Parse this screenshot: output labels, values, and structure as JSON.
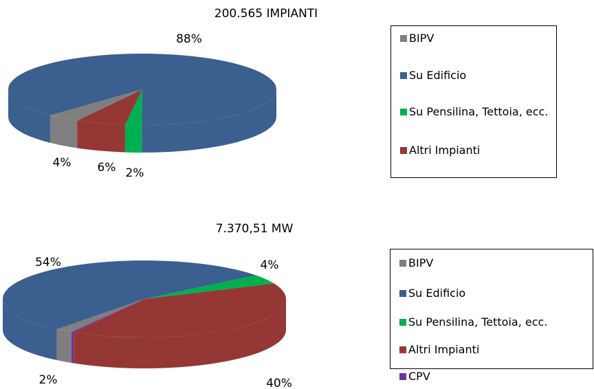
{
  "chart_data": [
    {
      "type": "pie3d",
      "title": "200.565 IMPIANTI",
      "categories": [
        "BIPV",
        "Su Edificio",
        "Su Pensilina, Tettoia, ecc.",
        "Altri Impianti"
      ],
      "values": [
        4,
        88,
        2,
        6
      ],
      "value_labels": [
        "4%",
        "88%",
        "2%",
        "6%"
      ],
      "colors": [
        "#7f7f7f",
        "#3b5f8f",
        "#00b050",
        "#953735"
      ],
      "legend": "right"
    },
    {
      "type": "pie3d",
      "title": "7.370,51 MW",
      "categories": [
        "BIPV",
        "Su Edificio",
        "Su Pensilina, Tettoia, ecc.",
        "Altri Impianti",
        "CPV"
      ],
      "values": [
        2,
        54,
        4,
        40,
        0.3
      ],
      "value_labels": [
        "2%",
        "54%",
        "4%",
        "40%",
        null
      ],
      "colors": [
        "#7f7f7f",
        "#3b5f8f",
        "#00b050",
        "#953735",
        "#7030a0"
      ],
      "legend": "right"
    }
  ]
}
